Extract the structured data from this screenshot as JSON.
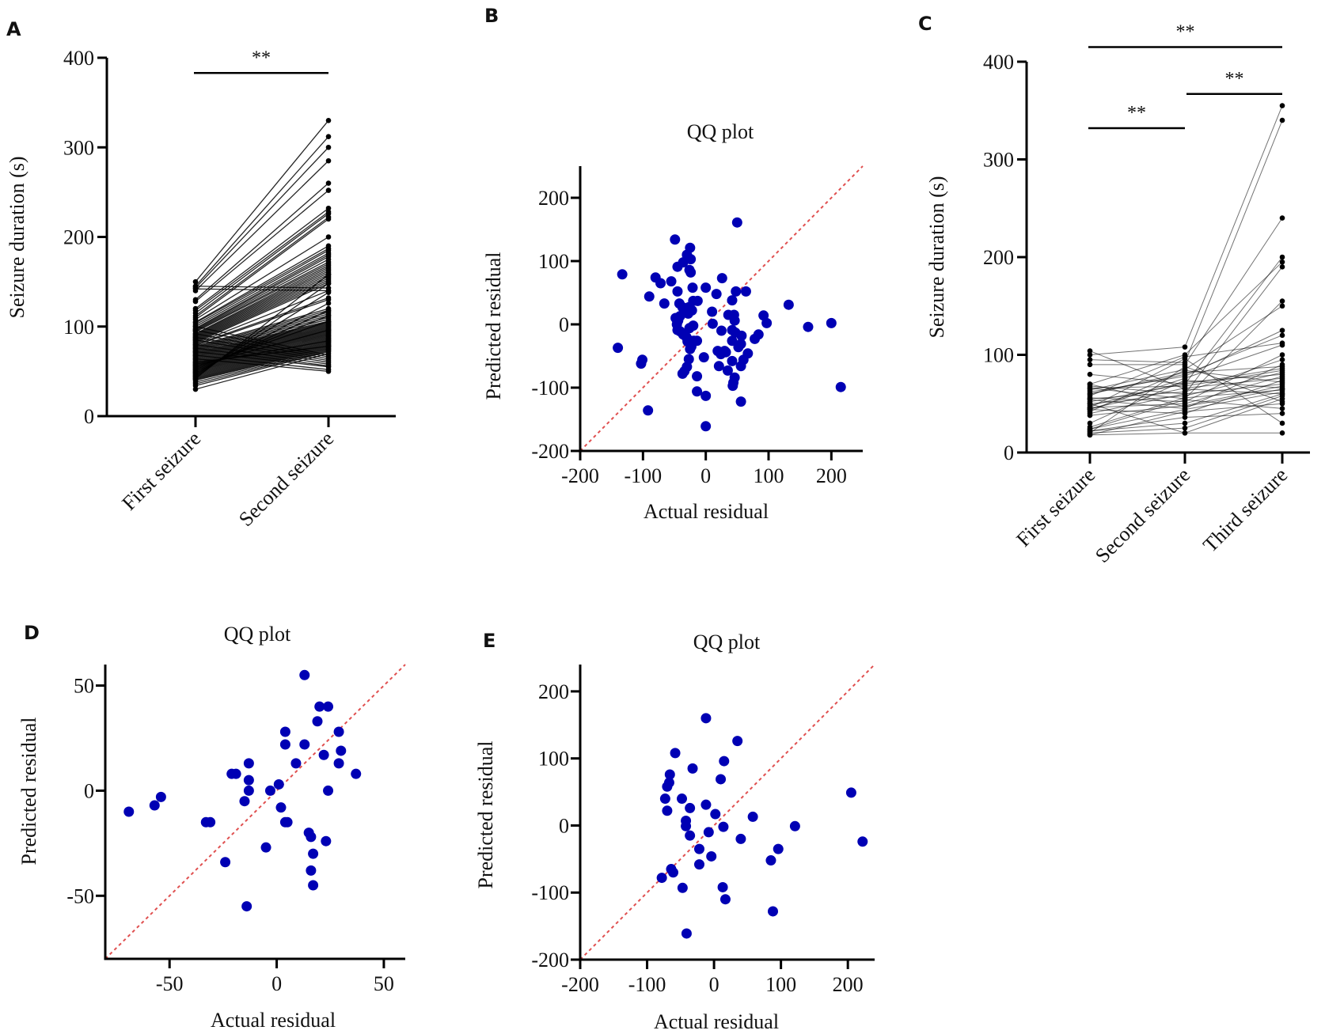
{
  "figure": {
    "panel_labels": [
      "A",
      "B",
      "C",
      "D",
      "E"
    ]
  },
  "chart_data": [
    {
      "panel": "A",
      "type": "line",
      "subtype": "paired-dot",
      "title": "",
      "xlabel": "",
      "ylabel": "Seizure duration (s)",
      "categories": [
        "First seizure",
        "Second seizure"
      ],
      "ylim": [
        0,
        400
      ],
      "yticks": [
        0,
        100,
        200,
        300,
        400
      ],
      "significance": [
        {
          "from": 0,
          "to": 1,
          "label": "**",
          "level": 383
        }
      ],
      "pairs": [
        [
          150,
          330
        ],
        [
          145,
          312
        ],
        [
          143,
          300
        ],
        [
          140,
          285
        ],
        [
          130,
          260
        ],
        [
          128,
          252
        ],
        [
          120,
          232
        ],
        [
          118,
          228
        ],
        [
          115,
          226
        ],
        [
          112,
          222
        ],
        [
          110,
          220
        ],
        [
          108,
          200
        ],
        [
          105,
          190
        ],
        [
          104,
          187
        ],
        [
          102,
          185
        ],
        [
          100,
          182
        ],
        [
          98,
          180
        ],
        [
          97,
          178
        ],
        [
          96,
          175
        ],
        [
          95,
          172
        ],
        [
          94,
          170
        ],
        [
          92,
          168
        ],
        [
          91,
          166
        ],
        [
          90,
          164
        ],
        [
          89,
          162
        ],
        [
          88,
          160
        ],
        [
          87,
          158
        ],
        [
          86,
          156
        ],
        [
          85,
          154
        ],
        [
          84,
          152
        ],
        [
          83,
          150
        ],
        [
          82,
          148
        ],
        [
          81,
          140
        ],
        [
          80,
          132
        ],
        [
          79,
          130
        ],
        [
          78,
          120
        ],
        [
          77,
          118
        ],
        [
          76,
          116
        ],
        [
          75,
          114
        ],
        [
          74,
          112
        ],
        [
          73,
          110
        ],
        [
          72,
          108
        ],
        [
          71,
          106
        ],
        [
          70,
          105
        ],
        [
          69,
          104
        ],
        [
          68,
          103
        ],
        [
          67,
          102
        ],
        [
          66,
          101
        ],
        [
          65,
          100
        ],
        [
          64,
          99
        ],
        [
          63,
          98
        ],
        [
          62,
          97
        ],
        [
          61,
          96
        ],
        [
          60,
          95
        ],
        [
          59,
          94
        ],
        [
          58,
          93
        ],
        [
          57,
          92
        ],
        [
          56,
          91
        ],
        [
          55,
          90
        ],
        [
          54,
          89
        ],
        [
          53,
          88
        ],
        [
          52,
          87
        ],
        [
          51,
          86
        ],
        [
          50,
          85
        ],
        [
          49,
          84
        ],
        [
          48,
          83
        ],
        [
          47,
          82
        ],
        [
          46,
          81
        ],
        [
          45,
          80
        ],
        [
          44,
          79
        ],
        [
          43,
          78
        ],
        [
          42,
          77
        ],
        [
          41,
          76
        ],
        [
          40,
          75
        ],
        [
          38,
          74
        ],
        [
          36,
          73
        ],
        [
          34,
          72
        ],
        [
          30,
          70
        ],
        [
          145,
          143
        ],
        [
          142,
          140
        ],
        [
          100,
          68
        ],
        [
          96,
          66
        ],
        [
          92,
          64
        ],
        [
          88,
          62
        ],
        [
          85,
          60
        ],
        [
          80,
          58
        ],
        [
          76,
          56
        ],
        [
          72,
          55
        ],
        [
          68,
          52
        ],
        [
          64,
          50
        ],
        [
          60,
          78
        ],
        [
          58,
          84
        ],
        [
          56,
          96
        ],
        [
          54,
          106
        ],
        [
          52,
          112
        ],
        [
          50,
          118
        ],
        [
          48,
          126
        ],
        [
          46,
          138
        ],
        [
          44,
          148
        ],
        [
          42,
          158
        ]
      ]
    },
    {
      "panel": "B",
      "type": "scatter",
      "title": "QQ plot",
      "xlabel": "Actual residual",
      "ylabel": "Predicted residual",
      "xlim": [
        -200,
        250
      ],
      "ylim": [
        -200,
        250
      ],
      "xticks": [
        -200,
        -100,
        0,
        100,
        200
      ],
      "yticks": [
        -200,
        -100,
        0,
        100,
        200
      ],
      "reference_line": "y = x",
      "points": [
        [
          -133,
          79
        ],
        [
          -140,
          -37
        ],
        [
          -101,
          -56
        ],
        [
          -103,
          -62
        ],
        [
          -92,
          -136
        ],
        [
          -49,
          134
        ],
        [
          -30,
          110
        ],
        [
          -25,
          121
        ],
        [
          -24,
          103
        ],
        [
          -36,
          98
        ],
        [
          -45,
          91
        ],
        [
          -26,
          86
        ],
        [
          -24,
          82
        ],
        [
          -80,
          74
        ],
        [
          -72,
          65
        ],
        [
          -55,
          68
        ],
        [
          -90,
          44
        ],
        [
          -66,
          33
        ],
        [
          -45,
          52
        ],
        [
          -21,
          58
        ],
        [
          0,
          58
        ],
        [
          17,
          48
        ],
        [
          26,
          73
        ],
        [
          -42,
          33
        ],
        [
          -37,
          27
        ],
        [
          -32,
          23
        ],
        [
          -27,
          27
        ],
        [
          -20,
          37
        ],
        [
          -13,
          37
        ],
        [
          -22,
          22
        ],
        [
          -28,
          17
        ],
        [
          10,
          20
        ],
        [
          -48,
          10
        ],
        [
          -41,
          13
        ],
        [
          -44,
          6
        ],
        [
          -46,
          0
        ],
        [
          -45,
          -9
        ],
        [
          -41,
          -11
        ],
        [
          -36,
          -16
        ],
        [
          -26,
          -6
        ],
        [
          -20,
          -2
        ],
        [
          -31,
          -20
        ],
        [
          -29,
          -27
        ],
        [
          -24,
          -26
        ],
        [
          -19,
          -26
        ],
        [
          -14,
          -26
        ],
        [
          -25,
          -39
        ],
        [
          -23,
          -35
        ],
        [
          11,
          1
        ],
        [
          25,
          -10
        ],
        [
          30,
          -42
        ],
        [
          42,
          -58
        ],
        [
          50,
          161
        ],
        [
          48,
          52
        ],
        [
          64,
          52
        ],
        [
          42,
          38
        ],
        [
          36,
          15
        ],
        [
          45,
          15
        ],
        [
          46,
          6
        ],
        [
          92,
          14
        ],
        [
          97,
          2
        ],
        [
          42,
          -9
        ],
        [
          47,
          -13
        ],
        [
          57,
          -18
        ],
        [
          78,
          -23
        ],
        [
          84,
          -16
        ],
        [
          56,
          -31
        ],
        [
          42,
          -26
        ],
        [
          52,
          -36
        ],
        [
          60,
          -56
        ],
        [
          56,
          -66
        ],
        [
          67,
          -46
        ],
        [
          19,
          -42
        ],
        [
          24,
          -47
        ],
        [
          32,
          -44
        ],
        [
          21,
          -66
        ],
        [
          35,
          -73
        ],
        [
          46,
          -84
        ],
        [
          44,
          -92
        ],
        [
          43,
          -97
        ],
        [
          -27,
          -55
        ],
        [
          -30,
          -67
        ],
        [
          -34,
          -74
        ],
        [
          -37,
          -78
        ],
        [
          -14,
          -82
        ],
        [
          -14,
          -106
        ],
        [
          0,
          -113
        ],
        [
          -3,
          -52
        ],
        [
          56,
          -122
        ],
        [
          0,
          -161
        ],
        [
          132,
          31
        ],
        [
          163,
          -4
        ],
        [
          200,
          2
        ],
        [
          215,
          -99
        ]
      ]
    },
    {
      "panel": "C",
      "type": "line",
      "subtype": "paired-dot",
      "title": "",
      "xlabel": "",
      "ylabel": "Seizure duration (s)",
      "categories": [
        "First seizure",
        "Second seizure",
        "Third seizure"
      ],
      "ylim": [
        0,
        400
      ],
      "yticks": [
        0,
        100,
        200,
        300,
        400
      ],
      "significance": [
        {
          "from": 0,
          "to": 1,
          "label": "**",
          "level": 332
        },
        {
          "from": 1,
          "to": 2,
          "label": "**",
          "level": 367
        },
        {
          "from": 0,
          "to": 2,
          "label": "**",
          "level": 415
        }
      ],
      "triples": [
        [
          104,
          65,
          60
        ],
        [
          100,
          108,
          355
        ],
        [
          95,
          92,
          340
        ],
        [
          90,
          90,
          240
        ],
        [
          80,
          70,
          200
        ],
        [
          70,
          100,
          195
        ],
        [
          68,
          60,
          190
        ],
        [
          66,
          55,
          155
        ],
        [
          64,
          85,
          150
        ],
        [
          62,
          78,
          125
        ],
        [
          60,
          80,
          120
        ],
        [
          58,
          98,
          112
        ],
        [
          56,
          52,
          100
        ],
        [
          55,
          62,
          95
        ],
        [
          54,
          45,
          90
        ],
        [
          52,
          70,
          86
        ],
        [
          50,
          58,
          82
        ],
        [
          48,
          72,
          80
        ],
        [
          46,
          50,
          78
        ],
        [
          45,
          66,
          76
        ],
        [
          44,
          40,
          74
        ],
        [
          42,
          84,
          72
        ],
        [
          40,
          60,
          70
        ],
        [
          38,
          48,
          68
        ],
        [
          30,
          74,
          66
        ],
        [
          26,
          56,
          64
        ],
        [
          24,
          44,
          62
        ],
        [
          22,
          30,
          60
        ],
        [
          20,
          25,
          58
        ],
        [
          18,
          20,
          55
        ],
        [
          20,
          88,
          52
        ],
        [
          18,
          42,
          50
        ],
        [
          24,
          54,
          45
        ],
        [
          22,
          36,
          40
        ],
        [
          46,
          96,
          30
        ],
        [
          50,
          20,
          20
        ],
        [
          60,
          82,
          88
        ],
        [
          66,
          68,
          84
        ],
        [
          70,
          47,
          65
        ],
        [
          44,
          76,
          110
        ]
      ]
    },
    {
      "panel": "D",
      "type": "scatter",
      "title": "QQ plot",
      "xlabel": "Actual residual",
      "ylabel": "Predicted residual",
      "xlim": [
        -80,
        60
      ],
      "ylim": [
        -80,
        60
      ],
      "xticks": [
        -50,
        0,
        50
      ],
      "yticks": [
        -50,
        0,
        50
      ],
      "reference_line": "y = x",
      "points": [
        [
          -69,
          -10
        ],
        [
          -57,
          -7
        ],
        [
          -54,
          -3
        ],
        [
          -33,
          -15
        ],
        [
          -31,
          -15
        ],
        [
          -24,
          -34
        ],
        [
          -21,
          8
        ],
        [
          -19,
          8
        ],
        [
          -15,
          -5
        ],
        [
          -13,
          13
        ],
        [
          -13,
          5
        ],
        [
          -13,
          0
        ],
        [
          -5,
          -27
        ],
        [
          -3,
          0
        ],
        [
          1,
          3
        ],
        [
          2,
          -8
        ],
        [
          4,
          -15
        ],
        [
          5,
          -15
        ],
        [
          4,
          28
        ],
        [
          4,
          22
        ],
        [
          9,
          13
        ],
        [
          13,
          22
        ],
        [
          13,
          55
        ],
        [
          15,
          -20
        ],
        [
          16,
          -38
        ],
        [
          16,
          -22
        ],
        [
          17,
          -30
        ],
        [
          17,
          -45
        ],
        [
          -14,
          -55
        ],
        [
          19,
          33
        ],
        [
          20,
          40
        ],
        [
          22,
          17
        ],
        [
          24,
          40
        ],
        [
          23,
          -24
        ],
        [
          24,
          0
        ],
        [
          29,
          13
        ],
        [
          29,
          28
        ],
        [
          30,
          19
        ],
        [
          37,
          8
        ]
      ]
    },
    {
      "panel": "E",
      "type": "scatter",
      "title": "QQ plot",
      "xlabel": "Actual residual",
      "ylabel": "Predicted residual",
      "xlim": [
        -200,
        240
      ],
      "ylim": [
        -200,
        240
      ],
      "xticks": [
        -200,
        -100,
        0,
        100,
        200
      ],
      "yticks": [
        -200,
        -100,
        0,
        100,
        200
      ],
      "reference_line": "y = x",
      "points": [
        [
          -12,
          160
        ],
        [
          35,
          126
        ],
        [
          -58,
          108
        ],
        [
          15,
          96
        ],
        [
          -32,
          85
        ],
        [
          -66,
          76
        ],
        [
          10,
          69
        ],
        [
          -67,
          64
        ],
        [
          -70,
          58
        ],
        [
          -73,
          40
        ],
        [
          -70,
          22
        ],
        [
          -48,
          40
        ],
        [
          -36,
          26
        ],
        [
          -12,
          31
        ],
        [
          2,
          17
        ],
        [
          -42,
          7
        ],
        [
          -42,
          -1
        ],
        [
          -36,
          -15
        ],
        [
          -8,
          -10
        ],
        [
          14,
          -2
        ],
        [
          58,
          13
        ],
        [
          121,
          -1
        ],
        [
          96,
          -35
        ],
        [
          85,
          -52
        ],
        [
          -22,
          -35
        ],
        [
          -22,
          -58
        ],
        [
          -4,
          -46
        ],
        [
          -64,
          -65
        ],
        [
          -61,
          -70
        ],
        [
          -78,
          -78
        ],
        [
          -47,
          -93
        ],
        [
          13,
          -92
        ],
        [
          17,
          -110
        ],
        [
          88,
          -128
        ],
        [
          -41,
          -161
        ],
        [
          40,
          -20
        ],
        [
          205,
          49
        ],
        [
          222,
          -24
        ]
      ]
    }
  ]
}
